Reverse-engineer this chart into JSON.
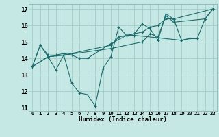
{
  "xlabel": "Humidex (Indice chaleur)",
  "bg_color": "#c5e8e5",
  "grid_color": "#a8d0cc",
  "line_color": "#1a6b6b",
  "xlim": [
    -0.5,
    23.5
  ],
  "ylim": [
    10.8,
    17.3
  ],
  "yticks": [
    11,
    12,
    13,
    14,
    15,
    16,
    17
  ],
  "xticks": [
    0,
    1,
    2,
    3,
    4,
    5,
    6,
    7,
    8,
    9,
    10,
    11,
    12,
    13,
    14,
    15,
    16,
    17,
    18,
    19,
    20,
    21,
    22,
    23
  ],
  "series": [
    [
      13.5,
      14.8,
      14.1,
      13.3,
      14.2,
      12.5,
      11.9,
      11.8,
      11.1,
      13.4,
      14.1,
      15.9,
      15.4,
      15.5,
      16.1,
      15.8,
      15.1,
      16.7,
      16.4,
      15.1,
      15.2,
      15.2,
      16.4,
      17.0
    ],
    [
      13.5,
      14.8,
      14.2,
      14.2,
      14.3,
      14.2,
      14.0,
      14.0,
      null,
      null,
      14.9,
      null,
      15.4,
      15.4,
      null,
      null,
      null,
      null,
      null,
      15.1,
      15.2,
      15.2,
      null,
      null
    ],
    [
      13.5,
      null,
      14.1,
      null,
      14.2,
      null,
      null,
      null,
      null,
      null,
      14.8,
      15.3,
      15.4,
      15.5,
      15.6,
      15.9,
      16.0,
      16.4,
      16.4,
      null,
      null,
      null,
      null,
      17.0
    ],
    [
      13.5,
      null,
      14.1,
      null,
      14.2,
      null,
      null,
      null,
      null,
      null,
      14.6,
      null,
      null,
      null,
      15.0,
      15.5,
      15.3,
      16.6,
      16.2,
      null,
      null,
      null,
      16.4,
      17.0
    ]
  ]
}
